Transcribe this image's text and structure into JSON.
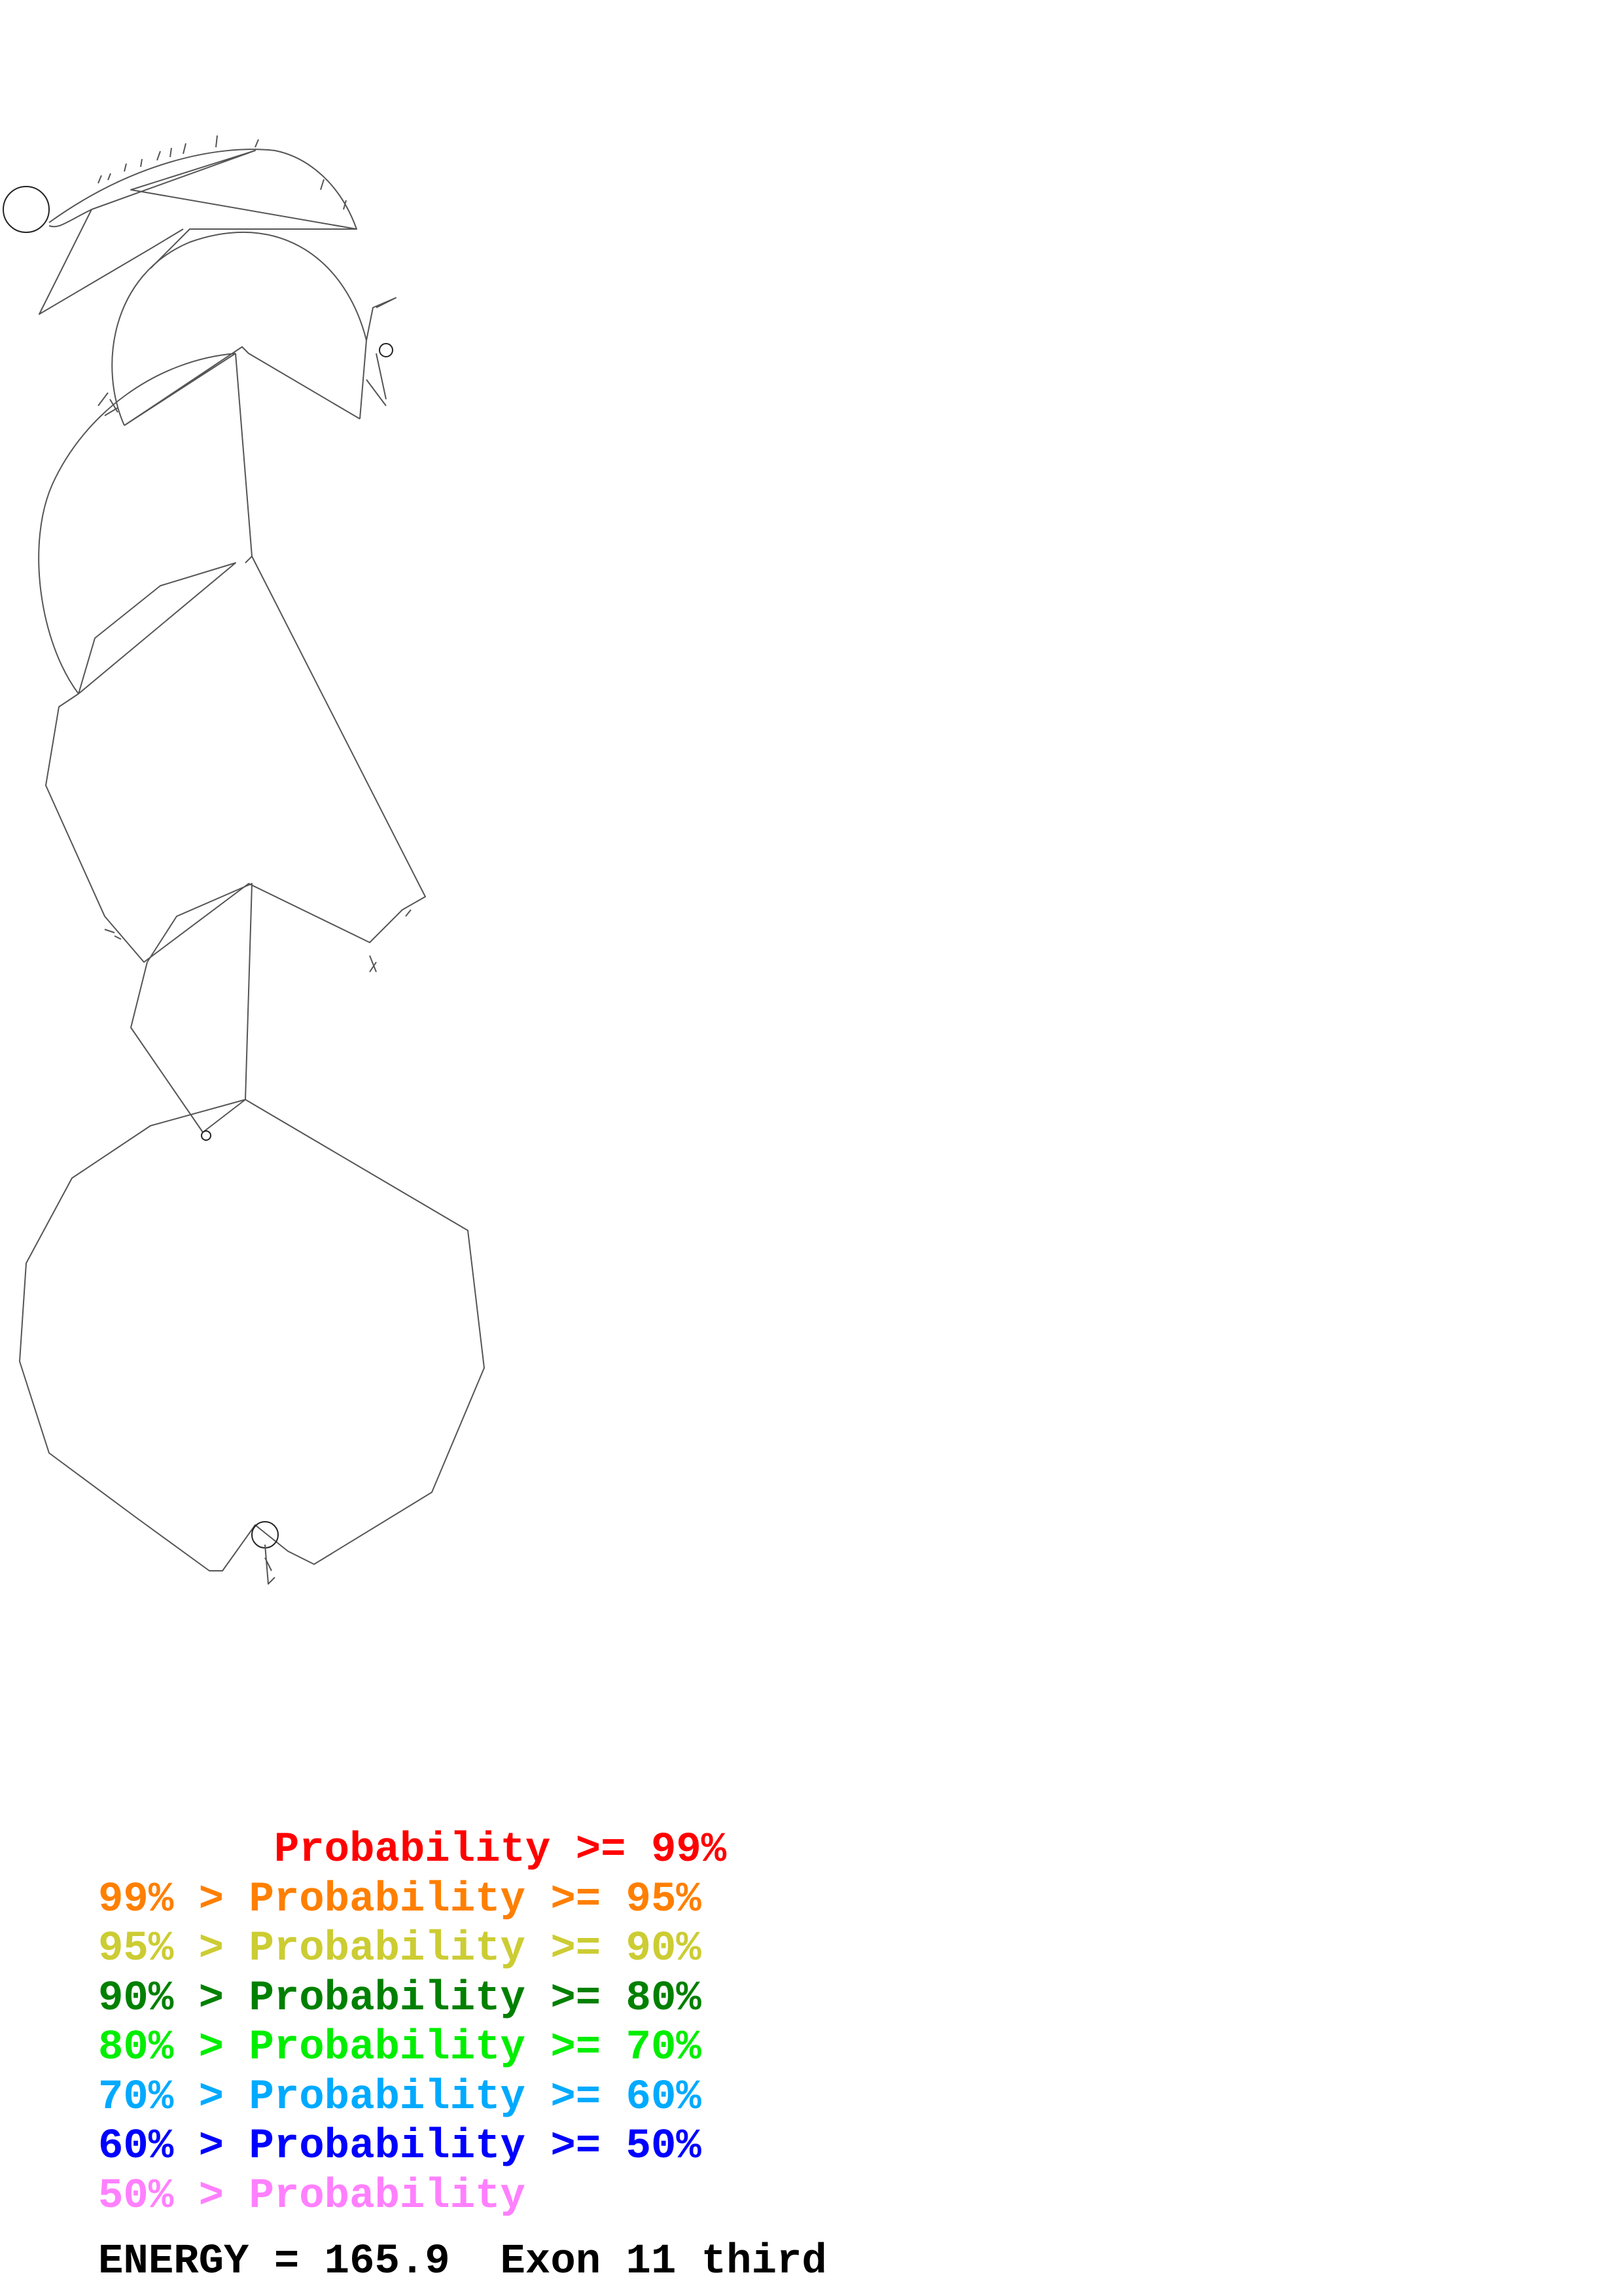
{
  "legend": {
    "rows": [
      {
        "text": "       Probability >= 99%",
        "color": "#ff0000"
      },
      {
        "text": "99% > Probability >= 95%",
        "color": "#ff7f00"
      },
      {
        "text": "95% > Probability >= 90%",
        "color": "#cccc33"
      },
      {
        "text": "90% > Probability >= 80%",
        "color": "#008000"
      },
      {
        "text": "80% > Probability >= 70%",
        "color": "#00ee00"
      },
      {
        "text": "70% > Probability >= 60%",
        "color": "#00aaff"
      },
      {
        "text": "60% > Probability >= 50%",
        "color": "#0000ff"
      },
      {
        "text": "50% > Probability",
        "color": "#ff80ff"
      }
    ]
  },
  "footer": {
    "energy_label": "ENERGY = 165.9",
    "name": "Exon 11 third"
  }
}
